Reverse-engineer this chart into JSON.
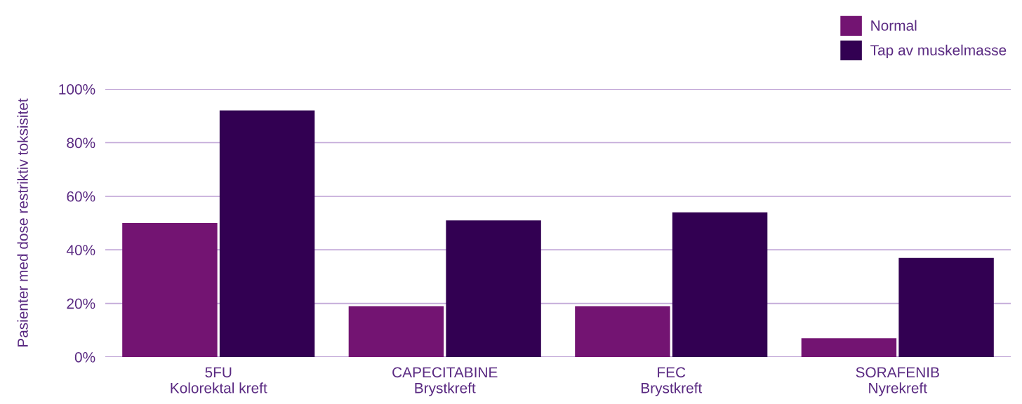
{
  "chart_data": {
    "type": "bar",
    "ylabel": "Pasienter med dose restriktiv toksisitet",
    "categories": [
      "5FU\nKolorektal kreft",
      "CAPECITABINE\nBrystkreft",
      "FEC\nBrystkreft",
      "SORAFENIB\nNyrekreft"
    ],
    "series": [
      {
        "name": "Normal",
        "color": "#731472",
        "values": [
          50,
          19,
          19,
          7
        ]
      },
      {
        "name": "Tap av muskelmasse",
        "color": "#320052",
        "values": [
          92,
          51,
          54,
          37
        ]
      }
    ],
    "ylim": [
      0,
      100
    ],
    "yticks": [
      {
        "value": 0,
        "label": "0%"
      },
      {
        "value": 20,
        "label": "20%"
      },
      {
        "value": 40,
        "label": "40%"
      },
      {
        "value": 60,
        "label": "60%"
      },
      {
        "value": 80,
        "label": "80%"
      },
      {
        "value": 100,
        "label": "100%"
      }
    ],
    "grid": "y",
    "legend": "top right"
  }
}
